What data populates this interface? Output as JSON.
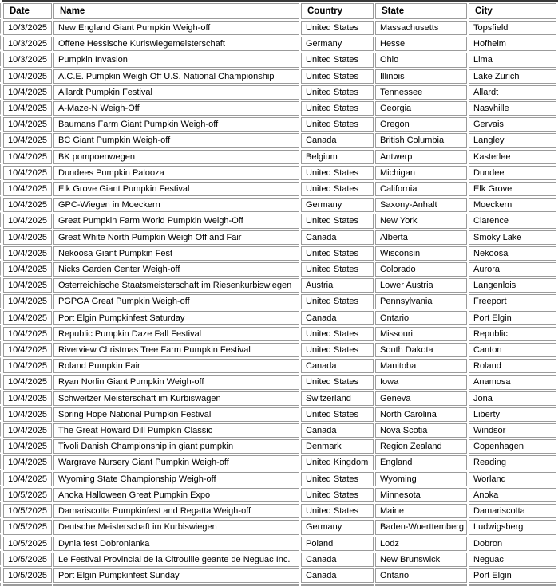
{
  "colors": {
    "background": "#ffffff",
    "text": "#000000",
    "cell_border": "#9b9b9b",
    "top_rule": "#3a3a3a"
  },
  "table": {
    "columns": [
      {
        "key": "date",
        "label": "Date"
      },
      {
        "key": "name",
        "label": "Name"
      },
      {
        "key": "country",
        "label": "Country"
      },
      {
        "key": "state",
        "label": "State"
      },
      {
        "key": "city",
        "label": "City"
      }
    ],
    "rows": [
      {
        "date": "10/3/2025",
        "name": "New England Giant Pumpkin Weigh-off",
        "country": "United States",
        "state": "Massachusetts",
        "city": "Topsfield"
      },
      {
        "date": "10/3/2025",
        "name": "Offene Hessische Kuriswiegemeisterschaft",
        "country": "Germany",
        "state": "Hesse",
        "city": "Hofheim"
      },
      {
        "date": "10/3/2025",
        "name": "Pumpkin Invasion",
        "country": "United States",
        "state": "Ohio",
        "city": "Lima"
      },
      {
        "date": "10/4/2025",
        "name": "A.C.E. Pumpkin Weigh Off U.S. National Championship",
        "country": "United States",
        "state": "Illinois",
        "city": "Lake Zurich"
      },
      {
        "date": "10/4/2025",
        "name": "Allardt Pumpkin Festival",
        "country": "United States",
        "state": "Tennessee",
        "city": "Allardt"
      },
      {
        "date": "10/4/2025",
        "name": "A-Maze-N Weigh-Off",
        "country": "United States",
        "state": "Georgia",
        "city": "Nasvhille"
      },
      {
        "date": "10/4/2025",
        "name": "Baumans Farm Giant Pumpkin Weigh-off",
        "country": "United States",
        "state": "Oregon",
        "city": "Gervais"
      },
      {
        "date": "10/4/2025",
        "name": "BC Giant Pumpkin Weigh-off",
        "country": "Canada",
        "state": "British Columbia",
        "city": "Langley"
      },
      {
        "date": "10/4/2025",
        "name": "BK pompoenwegen",
        "country": "Belgium",
        "state": "Antwerp",
        "city": "Kasterlee"
      },
      {
        "date": "10/4/2025",
        "name": "Dundees Pumpkin Palooza",
        "country": "United States",
        "state": "Michigan",
        "city": "Dundee"
      },
      {
        "date": "10/4/2025",
        "name": "Elk Grove Giant Pumpkin Festival",
        "country": "United States",
        "state": "California",
        "city": "Elk Grove"
      },
      {
        "date": "10/4/2025",
        "name": "GPC-Wiegen in Moeckern",
        "country": "Germany",
        "state": "Saxony-Anhalt",
        "city": "Moeckern"
      },
      {
        "date": "10/4/2025",
        "name": "Great Pumpkin Farm World Pumpkin Weigh-Off",
        "country": "United States",
        "state": "New York",
        "city": "Clarence"
      },
      {
        "date": "10/4/2025",
        "name": "Great White North Pumpkin Weigh Off and Fair",
        "country": "Canada",
        "state": "Alberta",
        "city": "Smoky Lake"
      },
      {
        "date": "10/4/2025",
        "name": "Nekoosa Giant Pumpkin Fest",
        "country": "United States",
        "state": "Wisconsin",
        "city": "Nekoosa"
      },
      {
        "date": "10/4/2025",
        "name": "Nicks Garden Center Weigh-off",
        "country": "United States",
        "state": "Colorado",
        "city": "Aurora"
      },
      {
        "date": "10/4/2025",
        "name": "Osterreichische Staatsmeisterschaft im Riesenkurbiswiegen",
        "country": "Austria",
        "state": "Lower Austria",
        "city": "Langenlois"
      },
      {
        "date": "10/4/2025",
        "name": "PGPGA Great Pumpkin Weigh-off",
        "country": "United States",
        "state": "Pennsylvania",
        "city": "Freeport"
      },
      {
        "date": "10/4/2025",
        "name": "Port Elgin Pumpkinfest Saturday",
        "country": "Canada",
        "state": "Ontario",
        "city": "Port Elgin"
      },
      {
        "date": "10/4/2025",
        "name": "Republic Pumpkin Daze Fall Festival",
        "country": "United States",
        "state": "Missouri",
        "city": "Republic"
      },
      {
        "date": "10/4/2025",
        "name": "Riverview Christmas Tree Farm Pumpkin Festival",
        "country": "United States",
        "state": "South Dakota",
        "city": "Canton"
      },
      {
        "date": "10/4/2025",
        "name": "Roland Pumpkin Fair",
        "country": "Canada",
        "state": "Manitoba",
        "city": "Roland"
      },
      {
        "date": "10/4/2025",
        "name": "Ryan Norlin Giant Pumpkin Weigh-off",
        "country": "United States",
        "state": "Iowa",
        "city": "Anamosa"
      },
      {
        "date": "10/4/2025",
        "name": "Schweitzer Meisterschaft im Kurbiswagen",
        "country": "Switzerland",
        "state": "Geneva",
        "city": "Jona"
      },
      {
        "date": "10/4/2025",
        "name": "Spring Hope National Pumpkin Festival",
        "country": "United States",
        "state": "North Carolina",
        "city": "Liberty"
      },
      {
        "date": "10/4/2025",
        "name": "The Great Howard Dill Pumpkin Classic",
        "country": "Canada",
        "state": "Nova Scotia",
        "city": "Windsor"
      },
      {
        "date": "10/4/2025",
        "name": "Tivoli Danish Championship in giant pumpkin",
        "country": "Denmark",
        "state": "Region Zealand",
        "city": "Copenhagen"
      },
      {
        "date": "10/4/2025",
        "name": "Wargrave Nursery Giant Pumpkin Weigh-off",
        "country": "United Kingdom",
        "state": "England",
        "city": "Reading"
      },
      {
        "date": "10/4/2025",
        "name": "Wyoming State Championship Weigh-off",
        "country": "United States",
        "state": "Wyoming",
        "city": "Worland"
      },
      {
        "date": "10/5/2025",
        "name": "Anoka Halloween Great Pumpkin Expo",
        "country": "United States",
        "state": "Minnesota",
        "city": "Anoka"
      },
      {
        "date": "10/5/2025",
        "name": "Damariscotta Pumpkinfest and Regatta Weigh-off",
        "country": "United States",
        "state": "Maine",
        "city": "Damariscotta"
      },
      {
        "date": "10/5/2025",
        "name": "Deutsche Meisterschaft im Kurbiswiegen",
        "country": "Germany",
        "state": "Baden-Wuerttemberg",
        "city": "Ludwigsberg"
      },
      {
        "date": "10/5/2025",
        "name": "Dynia fest Dobronianka",
        "country": "Poland",
        "state": "Lodz",
        "city": "Dobron"
      },
      {
        "date": "10/5/2025",
        "name": "Le Festival Provincial de la Citrouille geante de Neguac Inc.",
        "country": "Canada",
        "state": "New Brunswick",
        "city": "Neguac"
      },
      {
        "date": "10/5/2025",
        "name": "Port Elgin Pumpkinfest Sunday",
        "country": "Canada",
        "state": "Ontario",
        "city": "Port Elgin"
      }
    ]
  }
}
